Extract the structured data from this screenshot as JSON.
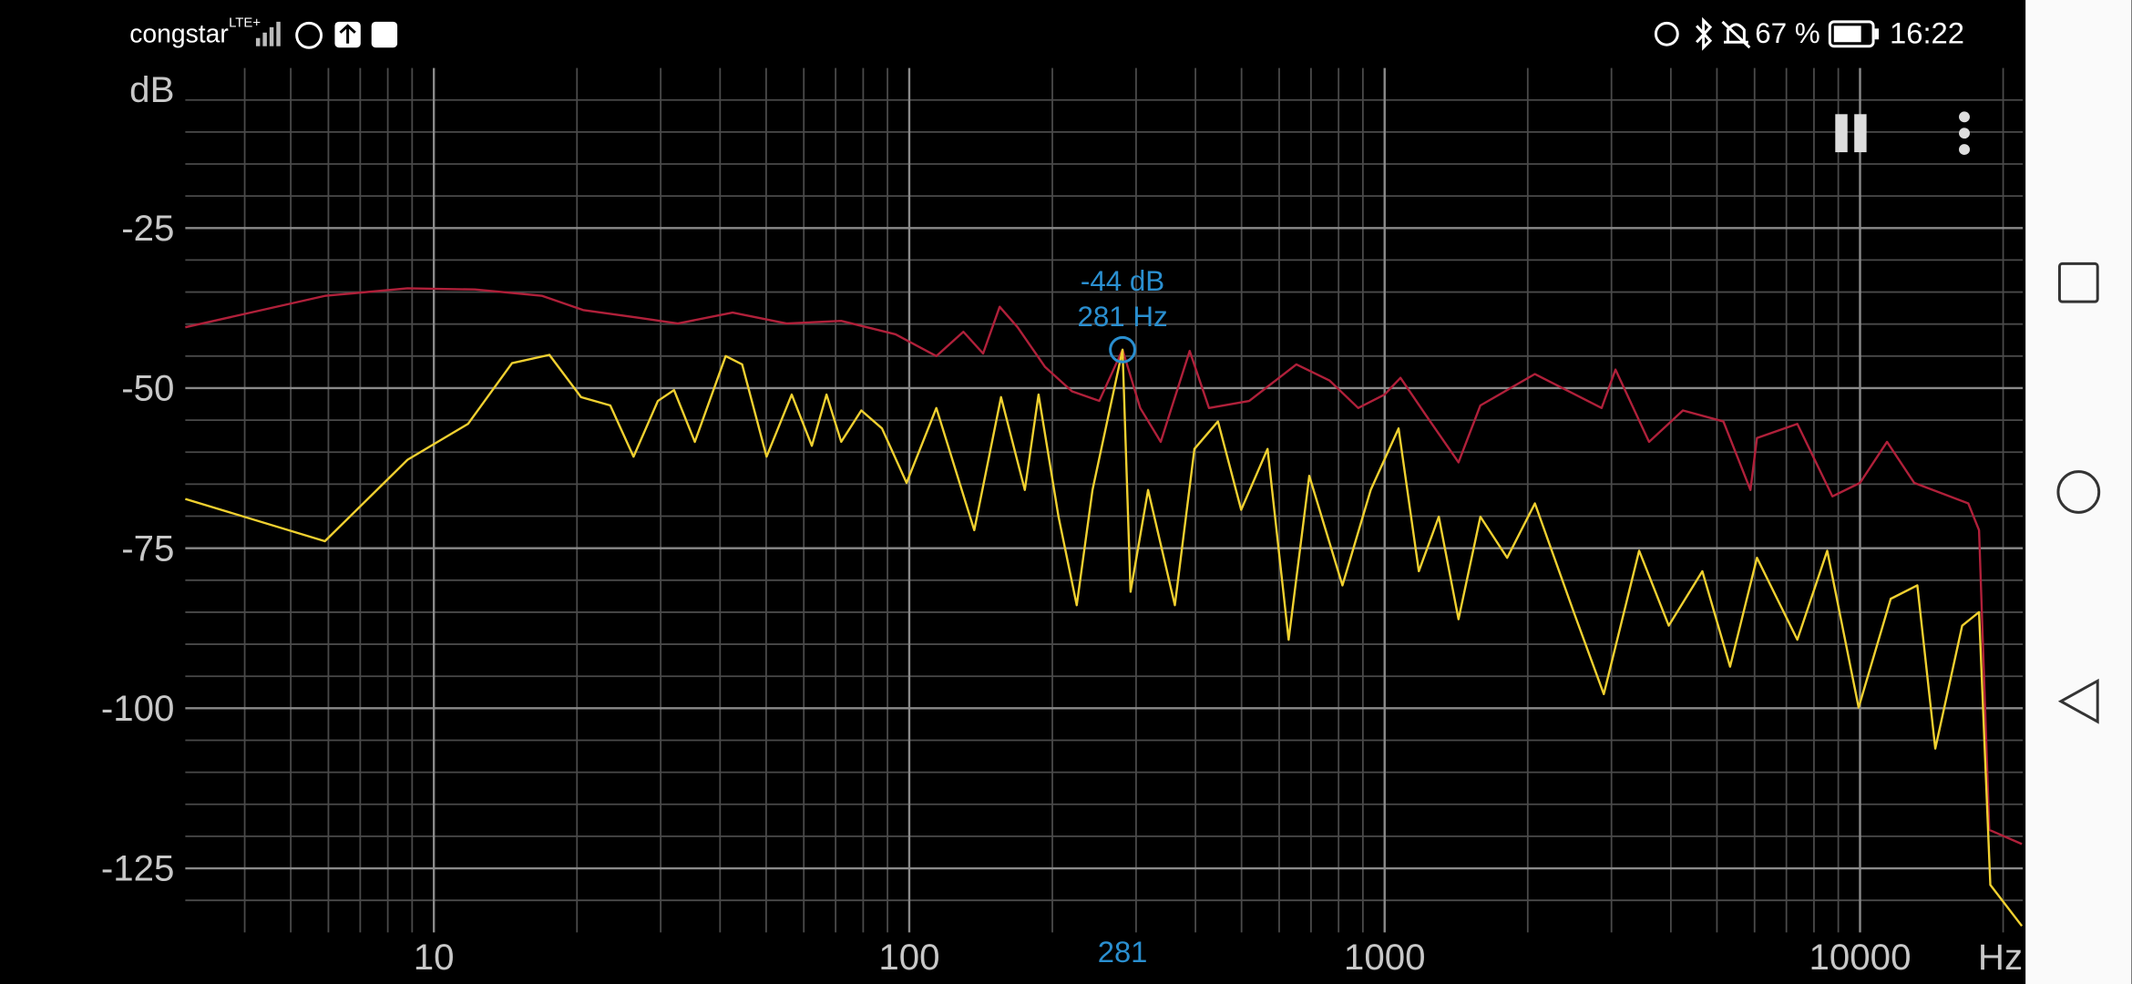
{
  "status_bar": {
    "carrier": "congstar",
    "network": "LTE+",
    "battery": "67 %",
    "time": "16:22"
  },
  "chart_data": {
    "type": "line",
    "xscale": "log",
    "grid": true,
    "x_label": "Hz",
    "y_label": "dB",
    "xlim": [
      3,
      22000
    ],
    "ylim": [
      0,
      -135
    ],
    "xticks": [
      10,
      100,
      1000,
      10000
    ],
    "yticks": [
      -25,
      -50,
      -75,
      -100,
      -125
    ],
    "minor_xticks": [
      4,
      5,
      6,
      7,
      8,
      9,
      20,
      30,
      40,
      50,
      60,
      70,
      80,
      90,
      200,
      300,
      400,
      500,
      600,
      700,
      800,
      900,
      2000,
      3000,
      4000,
      5000,
      6000,
      7000,
      8000,
      9000,
      20000
    ],
    "minor_yticks": [
      -5,
      -10,
      -15,
      -20,
      -30,
      -35,
      -40,
      -45,
      -55,
      -60,
      -65,
      -70,
      -80,
      -85,
      -90,
      -95,
      -105,
      -110,
      -115,
      -120,
      -130
    ],
    "cursor": {
      "x": 281,
      "y": -44,
      "y_label": "-44 dB",
      "x_label": "281 Hz",
      "axis_label": "281",
      "color": "#2a8fd0"
    },
    "series": [
      {
        "color": "#b0203a",
        "x": [
          3,
          5.9,
          8.8,
          12.2,
          16.9,
          20.6,
          26.8,
          32.6,
          42.5,
          55.2,
          71.9,
          93.6,
          114,
          130,
          143,
          155,
          169,
          193,
          220,
          251,
          281,
          306,
          338,
          389,
          427,
          519,
          652,
          765,
          880,
          1000,
          1080,
          1220,
          1430,
          1590,
          2070,
          2860,
          3060,
          3600,
          4240,
          5160,
          5880,
          6070,
          7380,
          8750,
          10000,
          11400,
          13000,
          16900,
          17800,
          18700,
          21900
        ],
        "values": [
          -40.5,
          -35.6,
          -34.4,
          -34.6,
          -35.6,
          -37.8,
          -39,
          -39.9,
          -38.2,
          -39.9,
          -39.5,
          -41.6,
          -45,
          -41.2,
          -44.6,
          -37.3,
          -40.5,
          -46.7,
          -50.5,
          -52,
          -44,
          -53.1,
          -58.4,
          -44.2,
          -53.1,
          -52,
          -46.3,
          -48.8,
          -53.1,
          -51,
          -48.4,
          -54.2,
          -61.6,
          -52.7,
          -47.8,
          -53.1,
          -47.1,
          -58.4,
          -53.5,
          -55.2,
          -65.9,
          -57.8,
          -55.6,
          -66.9,
          -64.8,
          -58.4,
          -64.8,
          -68,
          -72.2,
          -119,
          -121.2
        ]
      },
      {
        "color": "#f0d030",
        "x": [
          3,
          5.9,
          8.8,
          11.8,
          14.6,
          17.5,
          20.4,
          23.5,
          26.3,
          29.6,
          32,
          35.4,
          41.1,
          44.5,
          50.1,
          56.6,
          62.4,
          67,
          71.9,
          79.3,
          87.6,
          98.7,
          114,
          137,
          156,
          175,
          187,
          206,
          225,
          243,
          281,
          292,
          318,
          362,
          398,
          446,
          499,
          567,
          628,
          694,
          815,
          935,
          1070,
          1180,
          1300,
          1430,
          1590,
          1810,
          2070,
          2500,
          2890,
          3430,
          3960,
          4660,
          5330,
          6070,
          7380,
          8530,
          9930,
          11600,
          13200,
          14400,
          16400,
          17800,
          18800,
          21900
        ],
        "values": [
          -67.3,
          -73.9,
          -61.2,
          -55.6,
          -46.1,
          -44.8,
          -51.4,
          -52.7,
          -60.7,
          -52,
          -50.3,
          -58.4,
          -45,
          -46.3,
          -60.7,
          -51,
          -59,
          -51,
          -58.4,
          -53.5,
          -56.3,
          -64.8,
          -53.1,
          -72.2,
          -51.4,
          -65.9,
          -51,
          -70.1,
          -83.9,
          -65.9,
          -44,
          -81.8,
          -65.9,
          -83.9,
          -59.5,
          -55.2,
          -69,
          -59.5,
          -89.3,
          -63.7,
          -80.8,
          -65.9,
          -56.3,
          -78.6,
          -70.1,
          -86.1,
          -70.1,
          -76.5,
          -68,
          -85,
          -97.8,
          -75.4,
          -87.1,
          -78.6,
          -93.5,
          -76.5,
          -89.3,
          -75.4,
          -99.9,
          -82.9,
          -80.8,
          -106.3,
          -87.1,
          -85,
          -127.6,
          -134
        ]
      }
    ]
  }
}
